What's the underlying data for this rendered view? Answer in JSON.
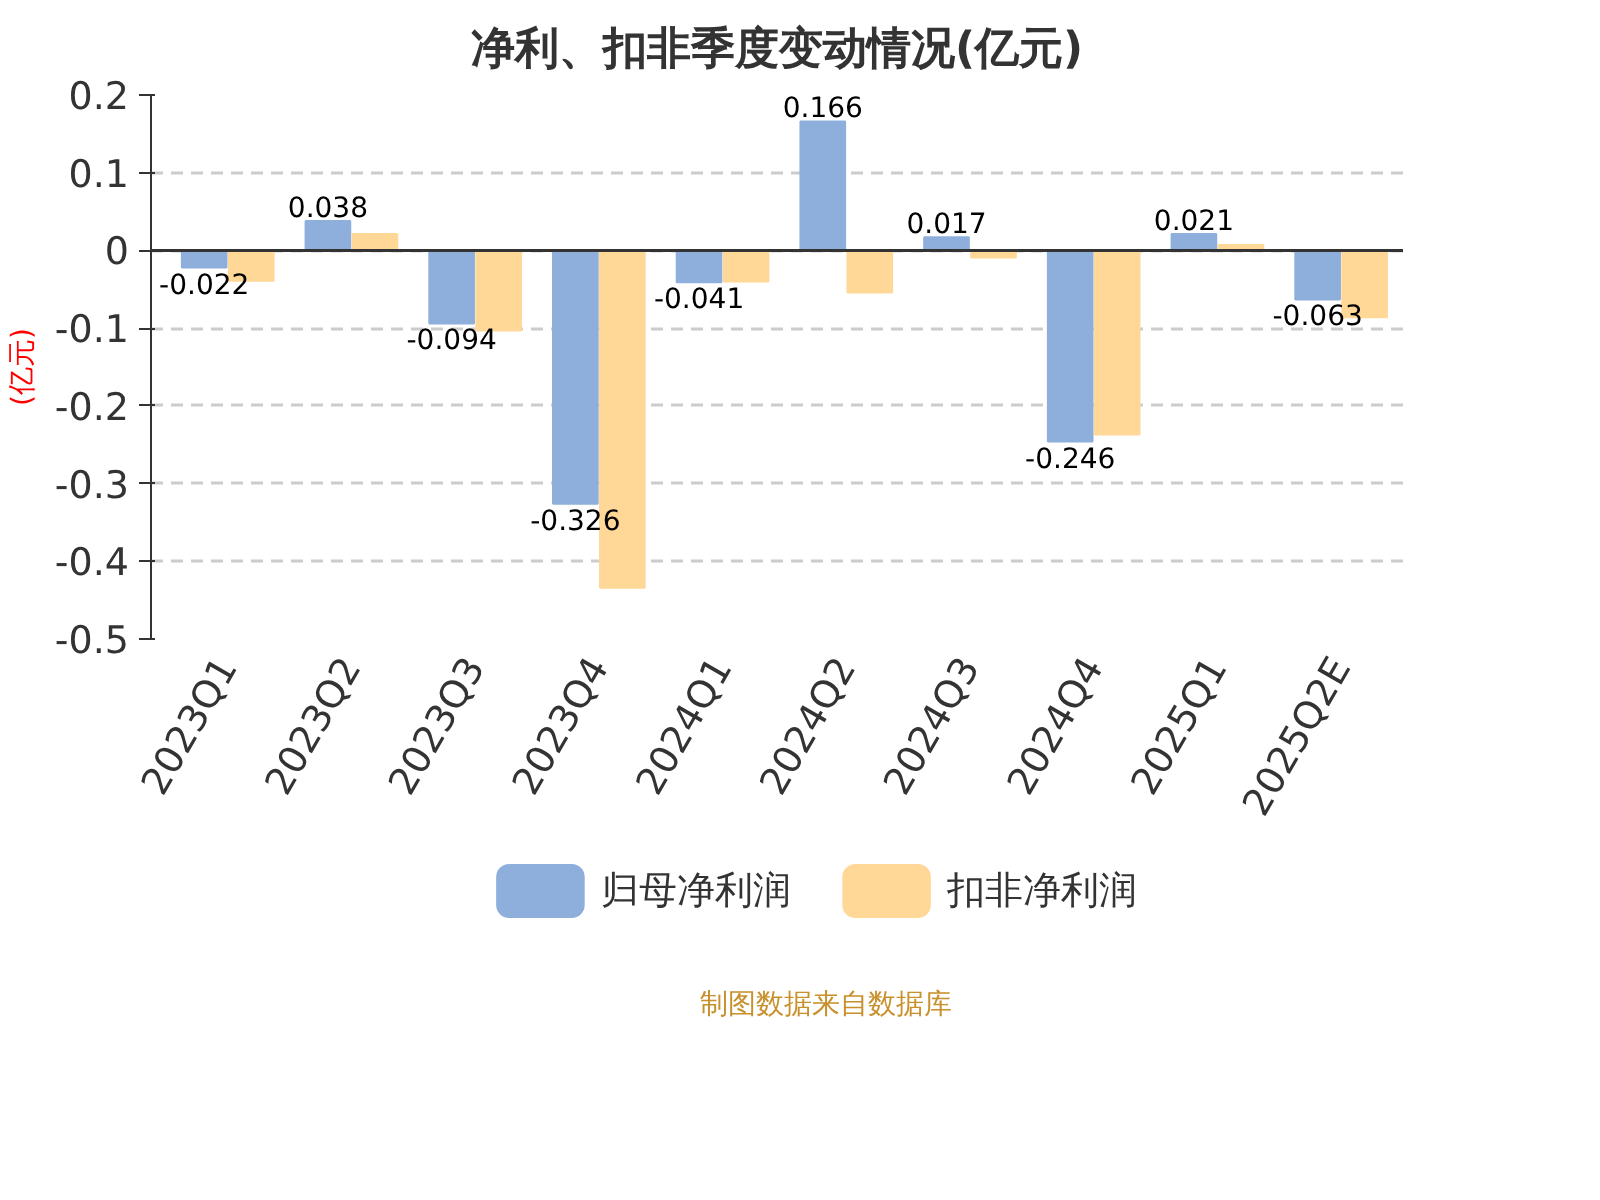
{
  "chart_data": {
    "type": "bar",
    "title": "净利、扣非季度变动情况(亿元)",
    "ylabel": "(亿元)",
    "categories": [
      "2023Q1",
      "2023Q2",
      "2023Q3",
      "2023Q4",
      "2024Q1",
      "2024Q2",
      "2024Q3",
      "2024Q4",
      "2025Q1",
      "2025Q2E"
    ],
    "series": [
      {
        "name": "归母净利润",
        "color": "#8eaedb",
        "values": [
          -0.022,
          0.038,
          -0.094,
          -0.326,
          -0.041,
          0.166,
          0.017,
          -0.246,
          0.021,
          -0.063
        ],
        "value_labels": [
          "-0.022",
          "0.038",
          "-0.094",
          "-0.326",
          "-0.041",
          "0.166",
          "0.017",
          "-0.246",
          "0.021",
          "-0.063"
        ]
      },
      {
        "name": "扣非净利润",
        "color": "#ffd897",
        "values": [
          -0.039,
          0.021,
          -0.103,
          -0.434,
          -0.04,
          -0.054,
          -0.009,
          -0.237,
          0.007,
          -0.086
        ]
      }
    ],
    "ylim": [
      -0.5,
      0.2
    ],
    "yticks": [
      -0.5,
      -0.4,
      -0.3,
      -0.2,
      -0.1,
      0,
      0.1,
      0.2
    ],
    "grid": "y",
    "legend": "bottom",
    "annotations": [
      "制图数据来自数据库"
    ]
  }
}
